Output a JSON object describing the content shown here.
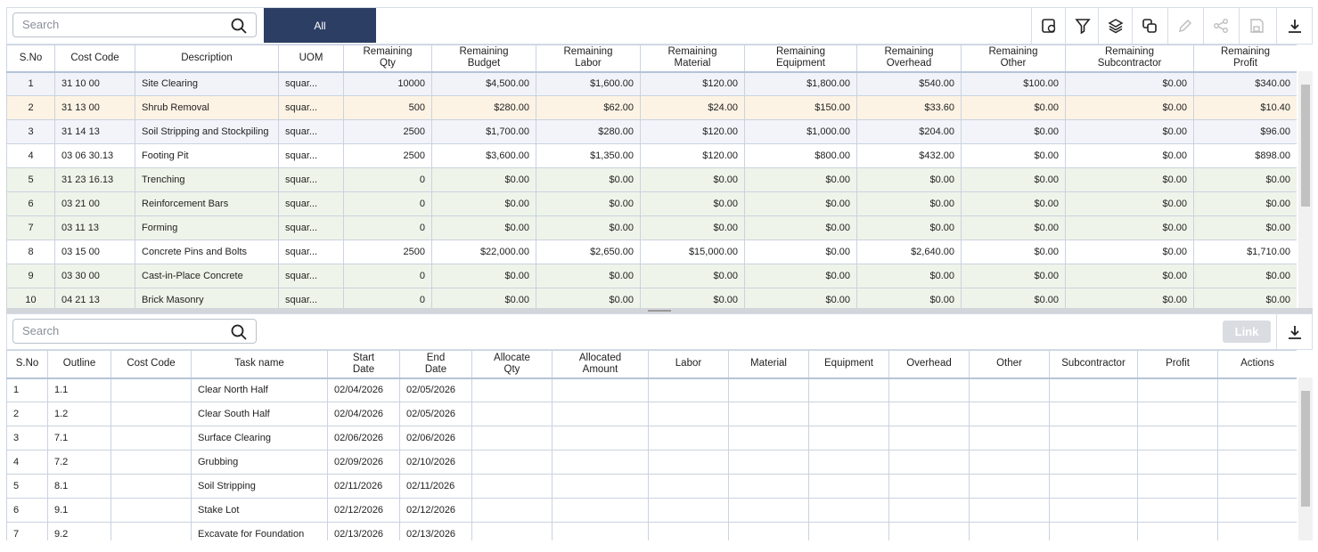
{
  "top": {
    "search_placeholder": "Search",
    "filter_button": "All",
    "table": {
      "columns": [
        "S.No",
        "Cost Code",
        "Description",
        "UOM",
        "Remaining Qty",
        "Remaining Budget",
        "Remaining Labor",
        "Remaining Material",
        "Remaining Equipment",
        "Remaining Overhead",
        "Remaining Other",
        "Remaining Subcontractor",
        "Remaining Profit"
      ],
      "rows": [
        [
          "1",
          "31 10 00",
          "Site Clearing",
          "squar...",
          "10000",
          "$4,500.00",
          "$1,600.00",
          "$120.00",
          "$1,800.00",
          "$540.00",
          "$100.00",
          "$0.00",
          "$340.00"
        ],
        [
          "2",
          "31 13 00",
          "Shrub Removal",
          "squar...",
          "500",
          "$280.00",
          "$62.00",
          "$24.00",
          "$150.00",
          "$33.60",
          "$0.00",
          "$0.00",
          "$10.40"
        ],
        [
          "3",
          "31 14 13",
          "Soil Stripping and Stockpiling",
          "squar...",
          "2500",
          "$1,700.00",
          "$280.00",
          "$120.00",
          "$1,000.00",
          "$204.00",
          "$0.00",
          "$0.00",
          "$96.00"
        ],
        [
          "4",
          "03 06 30.13",
          "Footing Pit",
          "squar...",
          "2500",
          "$3,600.00",
          "$1,350.00",
          "$120.00",
          "$800.00",
          "$432.00",
          "$0.00",
          "$0.00",
          "$898.00"
        ],
        [
          "5",
          "31 23 16.13",
          "Trenching",
          "squar...",
          "0",
          "$0.00",
          "$0.00",
          "$0.00",
          "$0.00",
          "$0.00",
          "$0.00",
          "$0.00",
          "$0.00"
        ],
        [
          "6",
          "03 21 00",
          "Reinforcement Bars",
          "squar...",
          "0",
          "$0.00",
          "$0.00",
          "$0.00",
          "$0.00",
          "$0.00",
          "$0.00",
          "$0.00",
          "$0.00"
        ],
        [
          "7",
          "03 11 13",
          "Forming",
          "squar...",
          "0",
          "$0.00",
          "$0.00",
          "$0.00",
          "$0.00",
          "$0.00",
          "$0.00",
          "$0.00",
          "$0.00"
        ],
        [
          "8",
          "03 15 00",
          "Concrete Pins and Bolts",
          "squar...",
          "2500",
          "$22,000.00",
          "$2,650.00",
          "$15,000.00",
          "$0.00",
          "$2,640.00",
          "$0.00",
          "$0.00",
          "$1,710.00"
        ],
        [
          "9",
          "03 30 00",
          "Cast-in-Place Concrete",
          "squar...",
          "0",
          "$0.00",
          "$0.00",
          "$0.00",
          "$0.00",
          "$0.00",
          "$0.00",
          "$0.00",
          "$0.00"
        ],
        [
          "10",
          "04 21 13",
          "Brick Masonry",
          "squar...",
          "0",
          "$0.00",
          "$0.00",
          "$0.00",
          "$0.00",
          "$0.00",
          "$0.00",
          "$0.00",
          "$0.00"
        ]
      ]
    }
  },
  "bottom": {
    "search_placeholder": "Search",
    "link_button": "Link",
    "table": {
      "columns": [
        "S.No",
        "Outline",
        "Cost Code",
        "Task name",
        "Start Date",
        "End Date",
        "Allocate Qty",
        "Allocated Amount",
        "Labor",
        "Material",
        "Equipment",
        "Overhead",
        "Other",
        "Subcontractor",
        "Profit",
        "Actions"
      ],
      "rows": [
        {
          "sno": "1",
          "outline": "1.1",
          "task": "Clear North Half",
          "start": "02/04/2026",
          "end": "02/05/2026"
        },
        {
          "sno": "2",
          "outline": "1.2",
          "task": "Clear South Half",
          "start": "02/04/2026",
          "end": "02/05/2026"
        },
        {
          "sno": "3",
          "outline": "7.1",
          "task": "Surface Clearing",
          "start": "02/06/2026",
          "end": "02/06/2026"
        },
        {
          "sno": "4",
          "outline": "7.2",
          "task": "Grubbing",
          "start": "02/09/2026",
          "end": "02/10/2026"
        },
        {
          "sno": "5",
          "outline": "8.1",
          "task": "Soil Stripping",
          "start": "02/11/2026",
          "end": "02/11/2026"
        },
        {
          "sno": "6",
          "outline": "9.1",
          "task": "Stake Lot",
          "start": "02/12/2026",
          "end": "02/12/2026"
        },
        {
          "sno": "7",
          "outline": "9.2",
          "task": "Excavate for Foundation",
          "start": "02/13/2026",
          "end": "02/13/2026"
        }
      ]
    }
  }
}
